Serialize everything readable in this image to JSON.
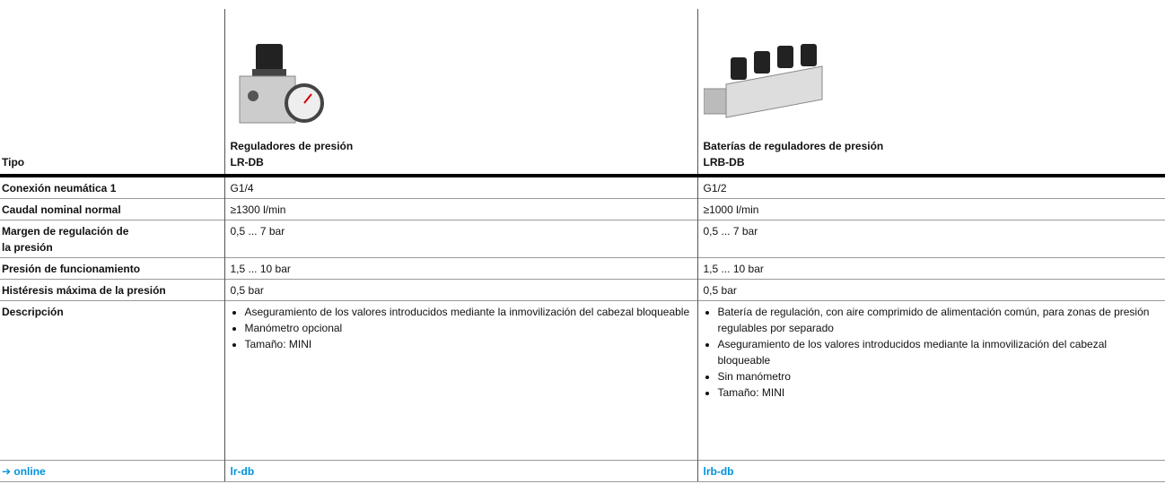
{
  "table": {
    "type_label": "Tipo",
    "products": [
      {
        "name": "Reguladores de presión",
        "code": "LR-DB"
      },
      {
        "name": "Baterías de reguladores de presión",
        "code": "LRB-DB"
      }
    ],
    "rows": [
      {
        "label": "Conexión neumática 1",
        "values": [
          "G1/4",
          "G1/2"
        ]
      },
      {
        "label": "Caudal nominal normal",
        "values": [
          "≥1300 l/min",
          "≥1000 l/min"
        ]
      },
      {
        "label": "Margen de regulación de la presión",
        "values": [
          "0,5 ... 7 bar",
          "0,5 ... 7 bar"
        ]
      },
      {
        "label": "Presión de funcionamiento",
        "values": [
          "1,5 ... 10 bar",
          "1,5 ... 10 bar"
        ]
      },
      {
        "label": "Histéresis máxima de la presión",
        "values": [
          "0,5 bar",
          "0,5 bar"
        ]
      }
    ],
    "description": {
      "label": "Descripción",
      "items": [
        [
          "Aseguramiento de los valores introducidos mediante la inmovilización del cabezal bloqueable",
          "Manómetro opcional",
          "Tamaño: MINI"
        ],
        [
          "Batería de regulación, con aire comprimido de alimentación común, para zonas de presión regulables por separado",
          "Aseguramiento de los valores introducidos mediante la inmovilización del cabezal bloqueable",
          "Sin manómetro",
          "Tamaño: MINI"
        ]
      ]
    },
    "online": {
      "label": "➔ online",
      "links": [
        "lr-db",
        "lrb-db"
      ]
    }
  }
}
